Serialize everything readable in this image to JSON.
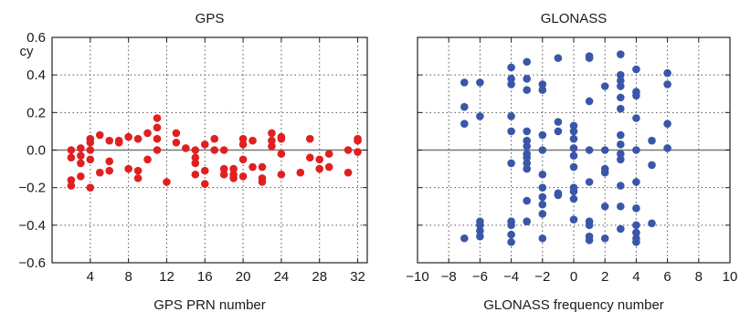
{
  "chart_data": [
    {
      "type": "scatter",
      "title": "GPS",
      "xlabel": "GPS PRN number",
      "ylabel": "cy",
      "xlim": [
        0,
        33
      ],
      "ylim": [
        -0.6,
        0.6
      ],
      "xticks": [
        4,
        8,
        12,
        16,
        20,
        24,
        28,
        32
      ],
      "yticks": [
        -0.6,
        -0.4,
        -0.2,
        0.0,
        0.2,
        0.4,
        0.6
      ],
      "ytick_labels": [
        "−0.6",
        "−0.4",
        "−0.2",
        "0.0",
        "0.2",
        "0.4",
        "0.6"
      ],
      "grid": true,
      "color": "#e02020",
      "points": [
        [
          2,
          0.0
        ],
        [
          2,
          -0.04
        ],
        [
          2,
          -0.16
        ],
        [
          2,
          -0.19
        ],
        [
          3,
          0.01
        ],
        [
          3,
          -0.03
        ],
        [
          3,
          -0.07
        ],
        [
          3,
          -0.14
        ],
        [
          4,
          0.06
        ],
        [
          4,
          0.04
        ],
        [
          4,
          0.0
        ],
        [
          4,
          -0.05
        ],
        [
          4,
          -0.2
        ],
        [
          5,
          0.08
        ],
        [
          5,
          -0.12
        ],
        [
          6,
          0.05
        ],
        [
          6,
          -0.06
        ],
        [
          6,
          -0.11
        ],
        [
          7,
          0.05
        ],
        [
          7,
          0.04
        ],
        [
          8,
          0.07
        ],
        [
          8,
          -0.1
        ],
        [
          9,
          0.06
        ],
        [
          9,
          -0.11
        ],
        [
          9,
          -0.15
        ],
        [
          10,
          0.09
        ],
        [
          10,
          -0.05
        ],
        [
          11,
          0.17
        ],
        [
          11,
          0.12
        ],
        [
          11,
          0.06
        ],
        [
          11,
          0.0
        ],
        [
          12,
          -0.17
        ],
        [
          13,
          0.09
        ],
        [
          13,
          0.04
        ],
        [
          14,
          0.01
        ],
        [
          15,
          0.0
        ],
        [
          15,
          -0.04
        ],
        [
          15,
          -0.07
        ],
        [
          15,
          -0.13
        ],
        [
          16,
          0.03
        ],
        [
          16,
          -0.11
        ],
        [
          16,
          -0.18
        ],
        [
          17,
          0.06
        ],
        [
          17,
          0.0
        ],
        [
          18,
          0.0
        ],
        [
          18,
          -0.1
        ],
        [
          18,
          -0.13
        ],
        [
          19,
          -0.1
        ],
        [
          19,
          -0.13
        ],
        [
          19,
          -0.15
        ],
        [
          20,
          0.06
        ],
        [
          20,
          0.03
        ],
        [
          20,
          -0.05
        ],
        [
          20,
          -0.14
        ],
        [
          21,
          0.05
        ],
        [
          21,
          -0.09
        ],
        [
          22,
          -0.09
        ],
        [
          22,
          -0.15
        ],
        [
          22,
          -0.17
        ],
        [
          23,
          0.09
        ],
        [
          23,
          0.05
        ],
        [
          23,
          0.02
        ],
        [
          24,
          0.07
        ],
        [
          24,
          0.06
        ],
        [
          24,
          -0.02
        ],
        [
          24,
          -0.13
        ],
        [
          26,
          -0.12
        ],
        [
          27,
          0.06
        ],
        [
          27,
          -0.04
        ],
        [
          28,
          -0.05
        ],
        [
          28,
          -0.1
        ],
        [
          29,
          -0.02
        ],
        [
          29,
          -0.09
        ],
        [
          31,
          0.0
        ],
        [
          31,
          -0.12
        ],
        [
          32,
          0.06
        ],
        [
          32,
          0.05
        ],
        [
          32,
          -0.01
        ]
      ]
    },
    {
      "type": "scatter",
      "title": "GLONASS",
      "xlabel": "GLONASS frequency number",
      "ylabel": "",
      "xlim": [
        -10,
        10
      ],
      "ylim": [
        -0.6,
        0.6
      ],
      "xticks": [
        -10,
        -8,
        -6,
        -4,
        -2,
        0,
        2,
        4,
        6,
        8,
        10
      ],
      "xtick_labels": [
        "−10",
        "−8",
        "−6",
        "−4",
        "−2",
        "0",
        "2",
        "4",
        "6",
        "8",
        "10"
      ],
      "yticks": [
        -0.6,
        -0.4,
        -0.2,
        0.0,
        0.2,
        0.4,
        0.6
      ],
      "grid": true,
      "color": "#3a56a8",
      "points": [
        [
          -7,
          0.36
        ],
        [
          -7,
          0.23
        ],
        [
          -7,
          0.14
        ],
        [
          -7,
          -0.47
        ],
        [
          -6,
          0.36
        ],
        [
          -6,
          0.18
        ],
        [
          -6,
          -0.38
        ],
        [
          -6,
          -0.4
        ],
        [
          -6,
          -0.43
        ],
        [
          -6,
          -0.46
        ],
        [
          -4,
          0.44
        ],
        [
          -4,
          0.38
        ],
        [
          -4,
          0.35
        ],
        [
          -4,
          0.18
        ],
        [
          -4,
          0.1
        ],
        [
          -4,
          -0.07
        ],
        [
          -4,
          -0.38
        ],
        [
          -4,
          -0.4
        ],
        [
          -4,
          -0.45
        ],
        [
          -4,
          -0.49
        ],
        [
          -3,
          0.47
        ],
        [
          -3,
          0.38
        ],
        [
          -3,
          0.32
        ],
        [
          -3,
          0.1
        ],
        [
          -3,
          0.05
        ],
        [
          -3,
          0.02
        ],
        [
          -3,
          -0.02
        ],
        [
          -3,
          -0.04
        ],
        [
          -3,
          -0.07
        ],
        [
          -3,
          -0.1
        ],
        [
          -3,
          -0.27
        ],
        [
          -3,
          -0.38
        ],
        [
          -2,
          0.35
        ],
        [
          -2,
          0.32
        ],
        [
          -2,
          0.08
        ],
        [
          -2,
          0.0
        ],
        [
          -2,
          -0.13
        ],
        [
          -2,
          -0.2
        ],
        [
          -2,
          -0.25
        ],
        [
          -2,
          -0.29
        ],
        [
          -2,
          -0.34
        ],
        [
          -2,
          -0.47
        ],
        [
          -1,
          0.49
        ],
        [
          -1,
          0.15
        ],
        [
          -1,
          0.1
        ],
        [
          -1,
          -0.23
        ],
        [
          -1,
          -0.24
        ],
        [
          0,
          0.13
        ],
        [
          0,
          0.1
        ],
        [
          0,
          0.06
        ],
        [
          0,
          0.01
        ],
        [
          0,
          -0.03
        ],
        [
          0,
          -0.09
        ],
        [
          0,
          -0.2
        ],
        [
          0,
          -0.22
        ],
        [
          0,
          -0.26
        ],
        [
          0,
          -0.37
        ],
        [
          1,
          0.5
        ],
        [
          1,
          0.49
        ],
        [
          1,
          0.26
        ],
        [
          1,
          0.0
        ],
        [
          1,
          -0.17
        ],
        [
          1,
          -0.38
        ],
        [
          1,
          -0.4
        ],
        [
          1,
          -0.46
        ],
        [
          1,
          -0.48
        ],
        [
          2,
          0.34
        ],
        [
          2,
          0.0
        ],
        [
          2,
          -0.1
        ],
        [
          2,
          -0.12
        ],
        [
          2,
          -0.3
        ],
        [
          2,
          -0.47
        ],
        [
          3,
          0.51
        ],
        [
          3,
          0.4
        ],
        [
          3,
          0.37
        ],
        [
          3,
          0.34
        ],
        [
          3,
          0.28
        ],
        [
          3,
          0.22
        ],
        [
          3,
          0.08
        ],
        [
          3,
          0.03
        ],
        [
          3,
          -0.02
        ],
        [
          3,
          -0.05
        ],
        [
          3,
          -0.19
        ],
        [
          3,
          -0.3
        ],
        [
          3,
          -0.42
        ],
        [
          4,
          0.43
        ],
        [
          4,
          0.31
        ],
        [
          4,
          0.29
        ],
        [
          4,
          0.17
        ],
        [
          4,
          0.0
        ],
        [
          4,
          -0.17
        ],
        [
          4,
          -0.31
        ],
        [
          4,
          -0.4
        ],
        [
          4,
          -0.44
        ],
        [
          4,
          -0.47
        ],
        [
          4,
          -0.49
        ],
        [
          5,
          0.05
        ],
        [
          5,
          -0.08
        ],
        [
          5,
          -0.39
        ],
        [
          6,
          0.41
        ],
        [
          6,
          0.35
        ],
        [
          6,
          0.14
        ],
        [
          6,
          0.01
        ]
      ]
    }
  ]
}
